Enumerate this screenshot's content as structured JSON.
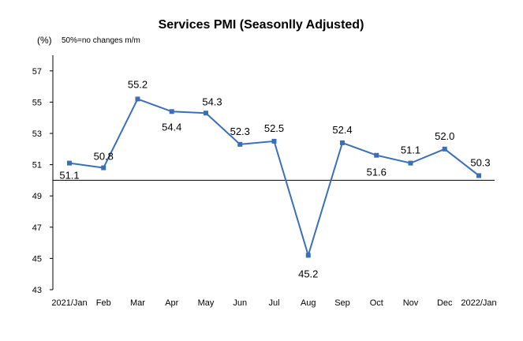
{
  "chart_data": {
    "type": "line",
    "title": "Services PMI (Seasonlly Adjusted)",
    "ylabel": "(%)",
    "annotation": "50%=no changes  m/m",
    "ylim": [
      43,
      58
    ],
    "yticks": [
      43,
      45,
      47,
      49,
      51,
      53,
      55,
      57
    ],
    "reference_line": 50,
    "grid": false,
    "line_color": "#3a6fb8",
    "categories": [
      "2021/Jan",
      "Feb",
      "Mar",
      "Apr",
      "May",
      "Jun",
      "Jul",
      "Aug",
      "Sep",
      "Oct",
      "Nov",
      "Dec",
      "2022/Jan"
    ],
    "series": [
      {
        "values": [
          51.1,
          50.8,
          55.2,
          54.4,
          54.3,
          52.3,
          52.5,
          45.2,
          52.4,
          51.6,
          51.1,
          52.0,
          50.3
        ],
        "labels": [
          "51.1",
          "50.8",
          "55.2",
          "54.4",
          "54.3",
          "52.3",
          "52.5",
          "45.2",
          "52.4",
          "51.6",
          "51.1",
          "52.0",
          "50.3"
        ]
      }
    ]
  }
}
